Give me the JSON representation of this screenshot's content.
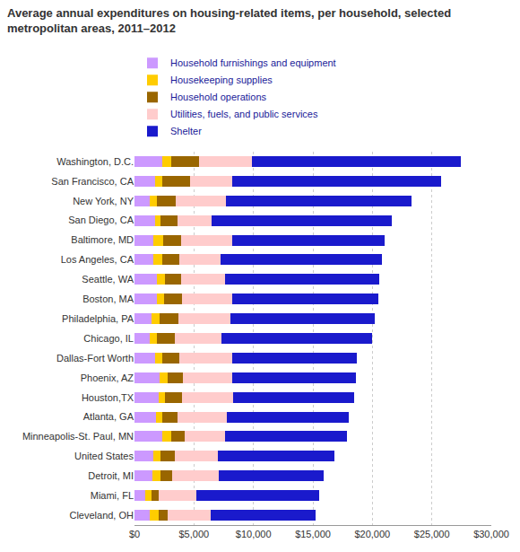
{
  "chart_data": {
    "type": "bar",
    "orientation": "horizontal",
    "stacked": true,
    "title": "Average annual expenditures on housing-related items, per household, selected metropolitan areas, 2011–2012",
    "categories": [
      "Washington, D.C.",
      "San Francisco, CA",
      "New York, NY",
      "San Diego, CA",
      "Baltimore, MD",
      "Los Angeles, CA",
      "Seattle, WA",
      "Boston, MA",
      "Philadelphia, PA",
      "Chicago, IL",
      "Dallas-Fort Worth",
      "Phoenix, AZ",
      "Houston,TX",
      "Atlanta, GA",
      "Minneapolis-St. Paul, MN",
      "United States",
      "Detroit, MI",
      "Miami, FL",
      "Cleveland, OH"
    ],
    "series": [
      {
        "name": "Household furnishings and equipment",
        "color": "#cc99ff",
        "values": [
          2300,
          1700,
          1300,
          1700,
          1600,
          1600,
          1900,
          1900,
          1400,
          1300,
          1700,
          2100,
          2000,
          1800,
          2300,
          1600,
          1500,
          900,
          1300
        ]
      },
      {
        "name": "Housekeeping supplies",
        "color": "#ffcc00",
        "values": [
          800,
          600,
          600,
          500,
          800,
          700,
          700,
          600,
          700,
          600,
          600,
          700,
          600,
          500,
          800,
          600,
          700,
          500,
          700
        ]
      },
      {
        "name": "Household operations",
        "color": "#996600",
        "values": [
          2300,
          2400,
          1600,
          1400,
          1500,
          1500,
          1300,
          1500,
          1600,
          1500,
          1500,
          1300,
          1400,
          1300,
          1100,
          1200,
          1000,
          600,
          800
        ]
      },
      {
        "name": "Utilities, fuels, and public services",
        "color": "#ffcccc",
        "values": [
          4500,
          3500,
          4200,
          2900,
          4300,
          3400,
          3700,
          4200,
          4400,
          3900,
          4400,
          4100,
          4300,
          4200,
          3400,
          3600,
          3900,
          3200,
          3600
        ]
      },
      {
        "name": "Shelter",
        "color": "#1a1acc",
        "values": [
          17500,
          17600,
          15600,
          15100,
          12800,
          13600,
          13000,
          12300,
          12100,
          12700,
          10500,
          10400,
          10200,
          10200,
          10300,
          9800,
          8800,
          10300,
          8800
        ]
      }
    ],
    "xlim": [
      0,
      30000
    ],
    "xticks": [
      {
        "value": 0,
        "label": "$0"
      },
      {
        "value": 5000,
        "label": "$5,000"
      },
      {
        "value": 10000,
        "label": "$10,000"
      },
      {
        "value": 15000,
        "label": "$15,000"
      },
      {
        "value": 20000,
        "label": "$20,000"
      },
      {
        "value": 25000,
        "label": "$25,000"
      },
      {
        "value": 30000,
        "label": "$30,000"
      }
    ],
    "grid": true,
    "legend": "top"
  }
}
